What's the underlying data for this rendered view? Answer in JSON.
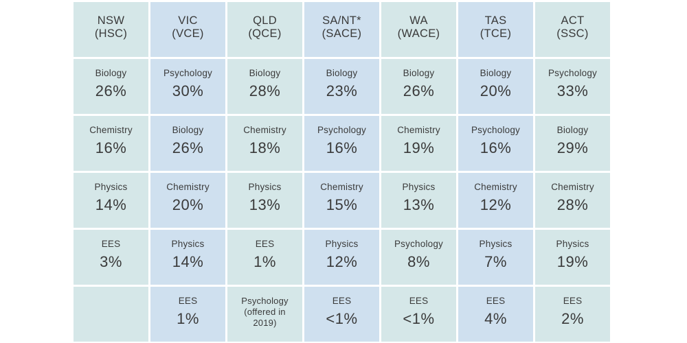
{
  "chart_data": {
    "type": "table",
    "columns": [
      {
        "state": "NSW",
        "certificate": "(HSC)"
      },
      {
        "state": "VIC",
        "certificate": "(VCE)"
      },
      {
        "state": "QLD",
        "certificate": "(QCE)"
      },
      {
        "state": "SA/NT*",
        "certificate": "(SACE)"
      },
      {
        "state": "WA",
        "certificate": "(WACE)"
      },
      {
        "state": "TAS",
        "certificate": "(TCE)"
      },
      {
        "state": "ACT",
        "certificate": "(SSC)"
      }
    ],
    "rows": [
      [
        {
          "subject": "Biology",
          "value": "26%"
        },
        {
          "subject": "Psychology",
          "value": "30%"
        },
        {
          "subject": "Biology",
          "value": "28%"
        },
        {
          "subject": "Biology",
          "value": "23%"
        },
        {
          "subject": "Biology",
          "value": "26%"
        },
        {
          "subject": "Biology",
          "value": "20%"
        },
        {
          "subject": "Psychology",
          "value": "33%"
        }
      ],
      [
        {
          "subject": "Chemistry",
          "value": "16%"
        },
        {
          "subject": "Biology",
          "value": "26%"
        },
        {
          "subject": "Chemistry",
          "value": "18%"
        },
        {
          "subject": "Psychology",
          "value": "16%"
        },
        {
          "subject": "Chemistry",
          "value": "19%"
        },
        {
          "subject": "Psychology",
          "value": "16%"
        },
        {
          "subject": "Biology",
          "value": "29%"
        }
      ],
      [
        {
          "subject": "Physics",
          "value": "14%"
        },
        {
          "subject": "Chemistry",
          "value": "20%"
        },
        {
          "subject": "Physics",
          "value": "13%"
        },
        {
          "subject": "Chemistry",
          "value": "15%"
        },
        {
          "subject": "Physics",
          "value": "13%"
        },
        {
          "subject": "Chemistry",
          "value": "12%"
        },
        {
          "subject": "Chemistry",
          "value": "28%"
        }
      ],
      [
        {
          "subject": "EES",
          "value": "3%"
        },
        {
          "subject": "Physics",
          "value": "14%"
        },
        {
          "subject": "EES",
          "value": "1%"
        },
        {
          "subject": "Physics",
          "value": "12%"
        },
        {
          "subject": "Psychology",
          "value": "8%"
        },
        {
          "subject": "Physics",
          "value": "7%"
        },
        {
          "subject": "Physics",
          "value": "19%"
        }
      ],
      [
        {
          "subject": "",
          "value": ""
        },
        {
          "subject": "EES",
          "value": "1%"
        },
        {
          "subject": "Psychology\n(offered in\n2019)",
          "value": ""
        },
        {
          "subject": "EES",
          "value": "<1%"
        },
        {
          "subject": "EES",
          "value": "<1%"
        },
        {
          "subject": "EES",
          "value": "4%"
        },
        {
          "subject": "EES",
          "value": "2%"
        }
      ]
    ]
  },
  "colors": {
    "column_even": "#d5e7e8",
    "column_odd": "#cfe0ef",
    "text": "#3a3a3a",
    "gap": "#ffffff"
  }
}
